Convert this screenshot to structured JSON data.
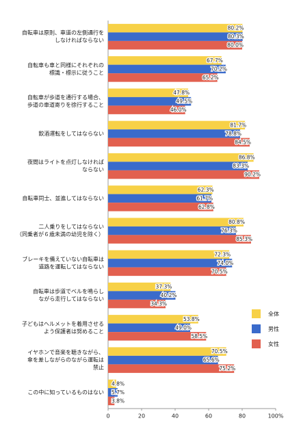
{
  "chart_data": {
    "type": "bar",
    "orientation": "horizontal",
    "categories": [
      [
        "自転車は原則、車道の左側通行を",
        "しなければならない"
      ],
      [
        "自転車も車と同様にそれぞれの",
        "標識・標示に従うこと"
      ],
      [
        "自転車が歩道を通行する場合、",
        "歩道の車道寄りを徐行すること"
      ],
      [
        "飲酒運転をしてはならない"
      ],
      [
        "夜間はライトを点灯しなければ",
        "ならない"
      ],
      [
        "自転車同士、並進してはならない"
      ],
      [
        "二人乗りをしてはならない",
        "（同乗者が６歳未満の幼児を除く）"
      ],
      [
        "ブレーキを備えていない自転車は",
        "道路を運転してはならない"
      ],
      [
        "自転車は歩道でベルを鳴らし",
        "ながら走行してはならない"
      ],
      [
        "子どもはヘルメットを着用させる",
        "よう保護者は努めること"
      ],
      [
        "イヤホンで音楽を聴きながら、",
        "傘を差しながらのながら運転は",
        "禁止"
      ],
      [
        "この中に知っているものはない"
      ]
    ],
    "series": [
      {
        "name": "全体",
        "color": "#f7d147",
        "values": [
          80.2,
          67.7,
          47.8,
          81.7,
          86.8,
          62.3,
          80.8,
          72.3,
          37.3,
          53.8,
          70.5,
          4.8
        ],
        "value_labels": [
          "80.2%",
          "67.7%",
          "47.8%",
          "81.7%",
          "86.8%",
          "62.3%",
          "80.8%",
          "72.3%",
          "37.3%",
          "53.8%",
          "70.5%",
          "4.8%"
        ]
      },
      {
        "name": "男性",
        "color": "#3a6bcb",
        "values": [
          80.3,
          70.2,
          49.5,
          78.8,
          83.3,
          61.7,
          76.3,
          74.0,
          40.2,
          49.0,
          65.6,
          5.7
        ],
        "value_labels": [
          "80.3%",
          "70.2%",
          "49.5%",
          "78.8%",
          "83.3%",
          "61.7%",
          "76.3%",
          "74.0%",
          "40.2%",
          "49.0%",
          "65.6%",
          "5.7%"
        ]
      },
      {
        "name": "女性",
        "color": "#e2604f",
        "values": [
          80.0,
          65.2,
          46.0,
          84.5,
          90.2,
          62.8,
          85.3,
          70.5,
          34.3,
          58.5,
          75.2,
          3.8
        ],
        "value_labels": [
          "80.0%",
          "65.2%",
          "46.0%",
          "84.5%",
          "90.2%",
          "62.8%",
          "85.3%",
          "70.5%",
          "34.3%",
          "58.5%",
          "75.2%",
          "3.8%"
        ]
      }
    ],
    "xlim": [
      0,
      100
    ],
    "xticks": [
      0,
      20,
      40,
      60,
      80,
      {
        "value": 100,
        "label": "100%"
      }
    ],
    "legend": "lower right"
  }
}
